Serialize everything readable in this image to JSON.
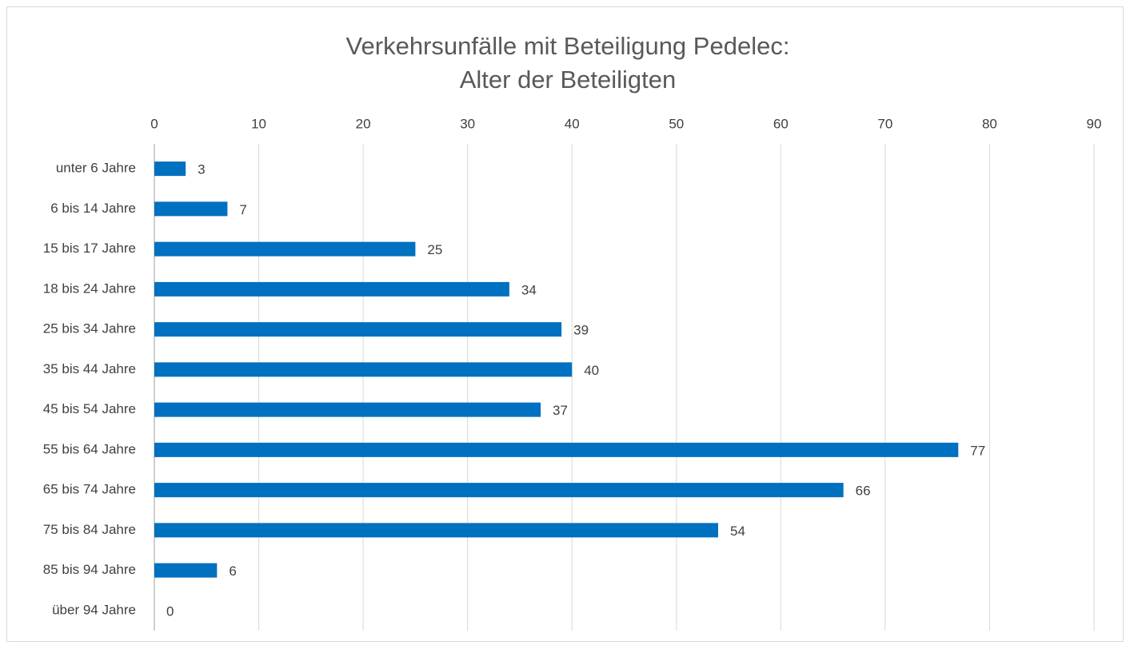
{
  "chart_data": {
    "type": "bar",
    "orientation": "horizontal",
    "title": [
      "Verkehrsunfälle mit Beteiligung Pedelec:",
      "Alter der Beteiligten"
    ],
    "categories": [
      "unter 6 Jahre",
      "6 bis 14 Jahre",
      "15 bis 17 Jahre",
      "18 bis 24 Jahre",
      "25 bis 34 Jahre",
      "35 bis 44 Jahre",
      "45 bis 54 Jahre",
      "55 bis 64 Jahre",
      "65 bis 74 Jahre",
      "75 bis 84 Jahre",
      "85 bis 94 Jahre",
      "über 94 Jahre"
    ],
    "values": [
      3,
      7,
      25,
      34,
      39,
      40,
      37,
      77,
      66,
      54,
      6,
      0
    ],
    "color": "#0070c0",
    "xlim": [
      0,
      90
    ],
    "xticks": [
      0,
      10,
      20,
      30,
      40,
      50,
      60,
      70,
      80,
      90
    ],
    "grid": true
  }
}
